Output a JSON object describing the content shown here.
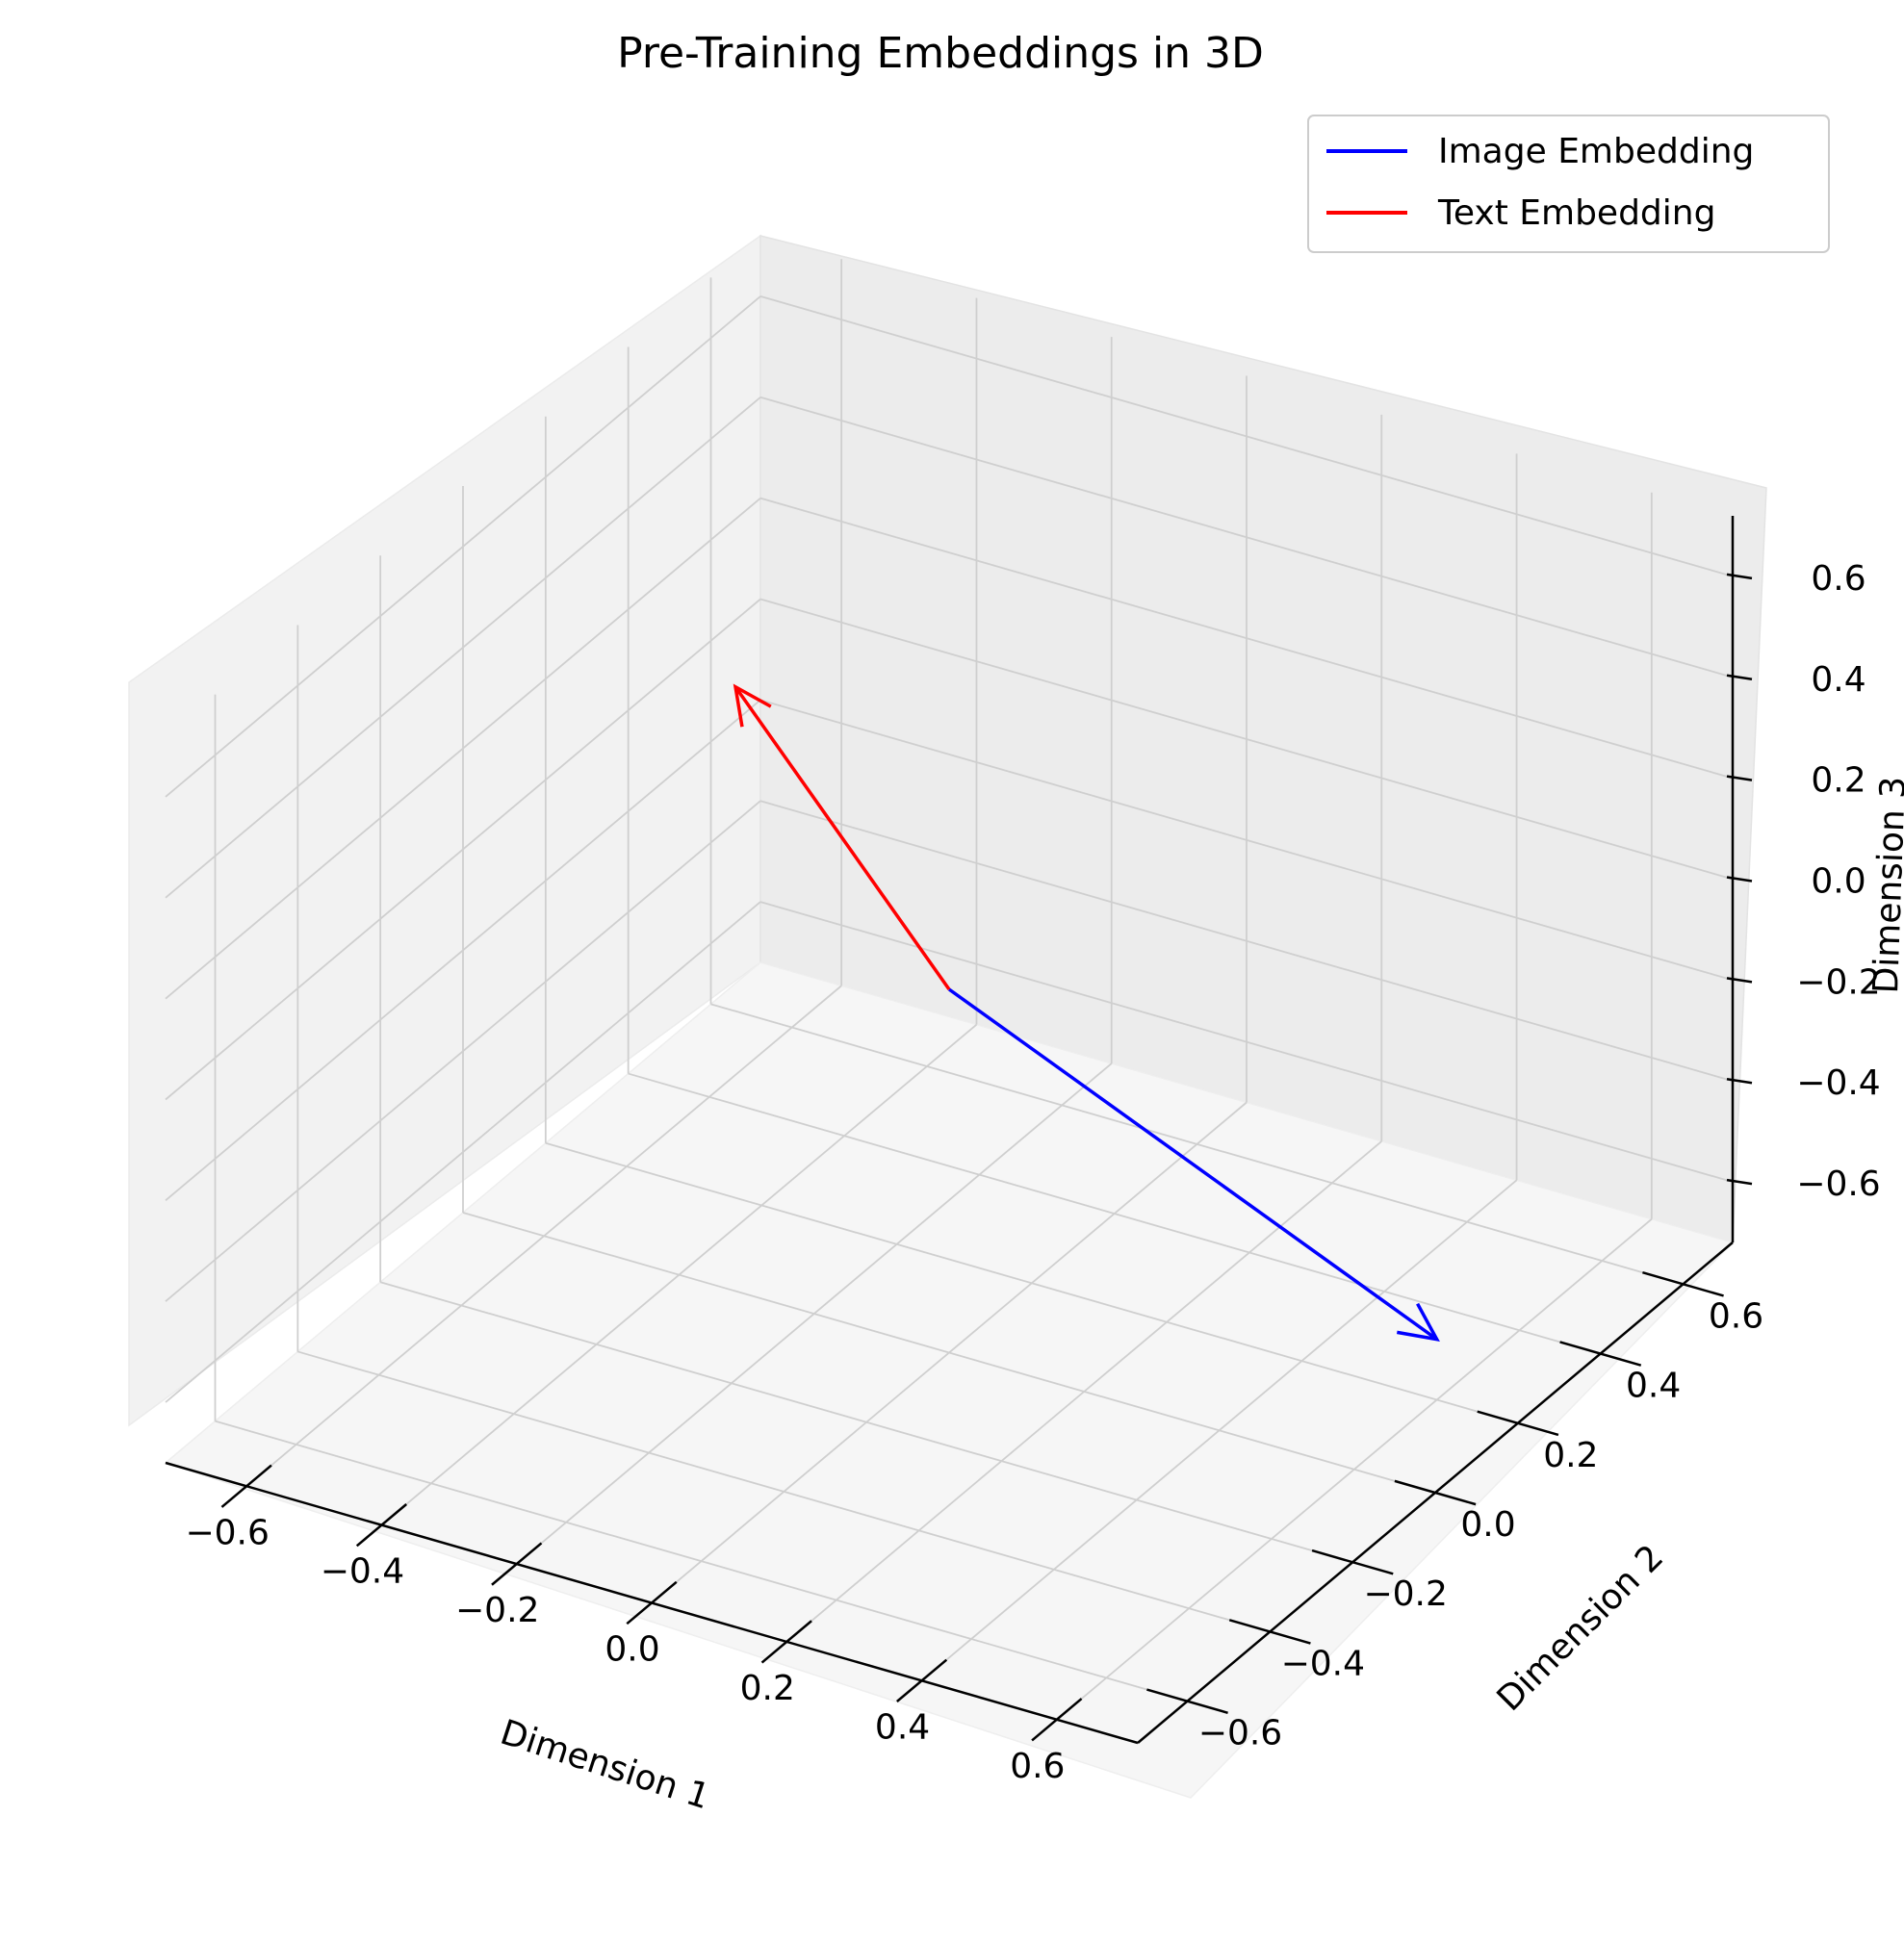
{
  "chart_data": {
    "type": "3d-quiver",
    "title": "Pre-Training Embeddings in 3D",
    "xlabel": "Dimension 1",
    "ylabel": "Dimension 2",
    "zlabel": "Dimension 3",
    "xlim": [
      -0.72,
      0.72
    ],
    "ylim": [
      -0.72,
      0.72
    ],
    "zlim": [
      -0.72,
      0.72
    ],
    "ticks": [
      -0.6,
      -0.4,
      -0.2,
      0.0,
      0.2,
      0.4,
      0.6
    ],
    "tick_labels": [
      "−0.6",
      "−0.4",
      "−0.2",
      "0.0",
      "0.2",
      "0.4",
      "0.6"
    ],
    "grid": true,
    "legend_position": "top-right",
    "series": [
      {
        "name": "Image Embedding",
        "color": "#0000ff",
        "start": [
          0,
          0,
          0
        ],
        "end": [
          0.6,
          0.2,
          -0.6
        ]
      },
      {
        "name": "Text Embedding",
        "color": "#ff0000",
        "start": [
          0,
          0,
          0
        ],
        "end": [
          -0.5,
          0.3,
          0.2
        ]
      }
    ]
  }
}
